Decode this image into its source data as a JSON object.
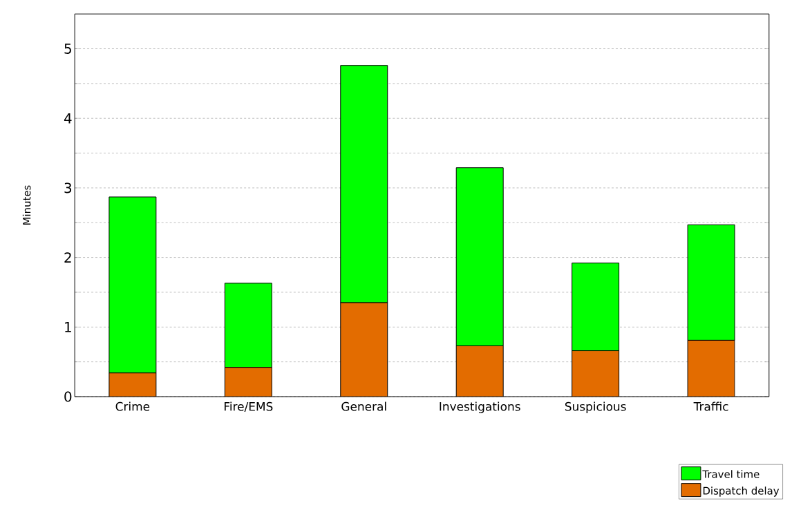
{
  "chart_data": {
    "type": "bar",
    "stacked": true,
    "ylabel": "Minutes",
    "categories": [
      "Crime",
      "Fire/EMS",
      "General",
      "Investigations",
      "Suspicious",
      "Traffic"
    ],
    "series": [
      {
        "name": "Dispatch delay",
        "color": "#e36c00",
        "values": [
          0.34,
          0.42,
          1.35,
          0.73,
          0.66,
          0.81
        ]
      },
      {
        "name": "Travel time",
        "color": "#00ff00",
        "values": [
          2.53,
          1.21,
          3.41,
          2.56,
          1.26,
          1.66
        ]
      }
    ],
    "ylim": [
      0,
      5.5
    ],
    "yticks": [
      0,
      {
        "value": 0.5,
        "label": null
      },
      1,
      {
        "value": 1.5,
        "label": null
      },
      2,
      {
        "value": 2.5,
        "label": null
      },
      3,
      {
        "value": 3.5,
        "label": null
      },
      4,
      {
        "value": 4.5,
        "label": null
      },
      5
    ],
    "grid": "y",
    "legend": "bottom right"
  }
}
